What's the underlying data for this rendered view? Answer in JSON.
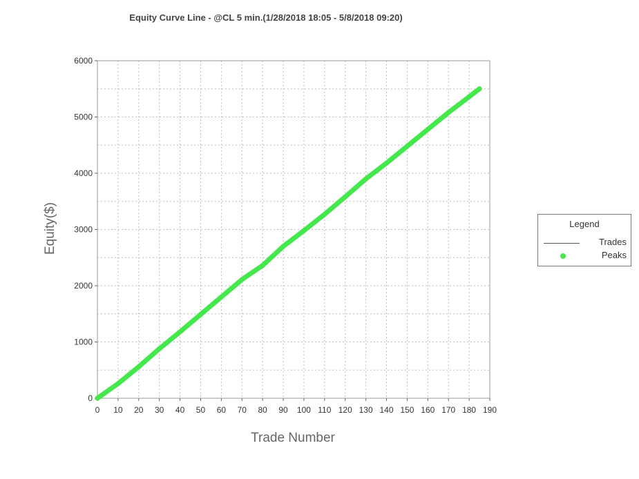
{
  "chart_data": {
    "type": "line",
    "title": "Equity Curve Line - @CL 5 min.(1/28/2018 18:05 - 5/8/2018 09:20)",
    "xlabel": "Trade Number",
    "ylabel": "Equity($)",
    "xlim": [
      0,
      190
    ],
    "ylim": [
      0,
      6000
    ],
    "xticks": [
      "0",
      "10",
      "20",
      "30",
      "40",
      "50",
      "60",
      "70",
      "80",
      "90",
      "100",
      "110",
      "120",
      "130",
      "140",
      "150",
      "160",
      "170",
      "180",
      "190"
    ],
    "yticks": [
      "0",
      "1000",
      "2000",
      "3000",
      "4000",
      "5000",
      "6000"
    ],
    "grid": true,
    "legend": {
      "title": "Legend",
      "placement": "right",
      "entries": [
        {
          "label": "Trades",
          "style": "line"
        },
        {
          "label": "Peaks",
          "style": "dot"
        }
      ]
    },
    "series": [
      {
        "name": "Peaks",
        "color": "#44e84c",
        "x": [
          0,
          10,
          20,
          30,
          40,
          50,
          60,
          70,
          80,
          90,
          100,
          110,
          120,
          130,
          140,
          150,
          160,
          170,
          180,
          185
        ],
        "y": [
          0,
          260,
          560,
          880,
          1180,
          1490,
          1800,
          2110,
          2360,
          2700,
          2980,
          3270,
          3580,
          3900,
          4180,
          4480,
          4780,
          5080,
          5360,
          5500
        ]
      }
    ]
  }
}
